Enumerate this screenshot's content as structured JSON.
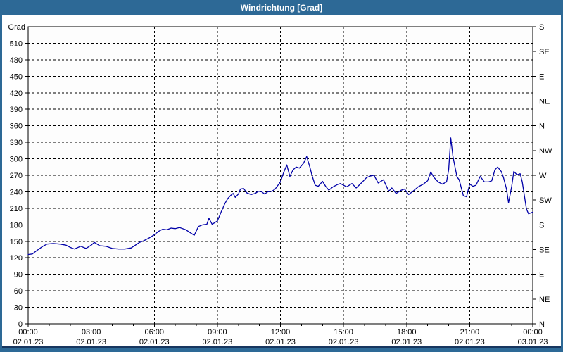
{
  "window": {
    "title": "Windrichtung [Grad]"
  },
  "colors": {
    "frame_blue": "#2d6996",
    "title_text": "#ffffff",
    "dark_edge": "#17365f",
    "plot_background": "#fdfdfd",
    "plot_border": "#000000",
    "grid": "#000000",
    "series_line": "#0000a8",
    "tick_text": "#000000"
  },
  "chart_data": {
    "type": "line",
    "title": "Windrichtung [Grad]",
    "y_unit_label": "Grad",
    "ylim": [
      0,
      540
    ],
    "xlim_hours": [
      0,
      24
    ],
    "grid": "dashed",
    "legend": "none",
    "y_left_ticks": [
      0,
      30,
      60,
      90,
      120,
      150,
      180,
      210,
      240,
      270,
      300,
      330,
      360,
      390,
      420,
      450,
      480,
      510
    ],
    "y_right_compass": [
      {
        "deg": 0,
        "label": "N"
      },
      {
        "deg": 45,
        "label": "NE"
      },
      {
        "deg": 90,
        "label": "E"
      },
      {
        "deg": 135,
        "label": "SE"
      },
      {
        "deg": 180,
        "label": "S"
      },
      {
        "deg": 225,
        "label": "SW"
      },
      {
        "deg": 270,
        "label": "W"
      },
      {
        "deg": 315,
        "label": "NW"
      },
      {
        "deg": 360,
        "label": "N"
      },
      {
        "deg": 405,
        "label": "NE"
      },
      {
        "deg": 450,
        "label": "E"
      },
      {
        "deg": 495,
        "label": "SE"
      },
      {
        "deg": 540,
        "label": "S"
      }
    ],
    "x_major_ticks": [
      {
        "hour": 0,
        "time": "00:00",
        "date": "02.01.23"
      },
      {
        "hour": 3,
        "time": "03:00",
        "date": "02.01.23"
      },
      {
        "hour": 6,
        "time": "06:00",
        "date": "02.01.23"
      },
      {
        "hour": 9,
        "time": "09:00",
        "date": "02.01.23"
      },
      {
        "hour": 12,
        "time": "12:00",
        "date": "02.01.23"
      },
      {
        "hour": 15,
        "time": "15:00",
        "date": "02.01.23"
      },
      {
        "hour": 18,
        "time": "18:00",
        "date": "02.01.23"
      },
      {
        "hour": 21,
        "time": "21:00",
        "date": "02.01.23"
      },
      {
        "hour": 24,
        "time": "00:00",
        "date": "03.01.23"
      }
    ],
    "x_minor_tick_step_hours": 1,
    "series": [
      {
        "name": "Windrichtung",
        "color": "#0000a8",
        "points": [
          [
            0,
            126
          ],
          [
            0.2,
            127
          ],
          [
            0.4,
            133
          ],
          [
            0.7,
            141
          ],
          [
            0.9,
            145
          ],
          [
            1.2,
            146
          ],
          [
            1.5,
            145
          ],
          [
            1.8,
            143
          ],
          [
            2,
            139
          ],
          [
            2.2,
            136
          ],
          [
            2.5,
            141
          ],
          [
            2.75,
            137
          ],
          [
            3,
            143
          ],
          [
            3.15,
            148
          ],
          [
            3.4,
            142
          ],
          [
            3.7,
            141
          ],
          [
            4,
            137
          ],
          [
            4.3,
            136
          ],
          [
            4.6,
            136
          ],
          [
            4.9,
            138
          ],
          [
            5.1,
            143
          ],
          [
            5.3,
            148
          ],
          [
            5.5,
            151
          ],
          [
            5.75,
            156
          ],
          [
            6,
            162
          ],
          [
            6.2,
            168
          ],
          [
            6.4,
            172
          ],
          [
            6.6,
            171
          ],
          [
            6.8,
            174
          ],
          [
            7,
            173
          ],
          [
            7.2,
            175
          ],
          [
            7.5,
            171
          ],
          [
            7.7,
            166
          ],
          [
            7.9,
            161
          ],
          [
            8.1,
            177
          ],
          [
            8.3,
            180
          ],
          [
            8.5,
            181
          ],
          [
            8.6,
            192
          ],
          [
            8.75,
            181
          ],
          [
            9,
            187
          ],
          [
            9.2,
            205
          ],
          [
            9.35,
            218
          ],
          [
            9.5,
            228
          ],
          [
            9.65,
            234
          ],
          [
            9.75,
            237
          ],
          [
            9.85,
            230
          ],
          [
            10,
            236
          ],
          [
            10.1,
            245
          ],
          [
            10.25,
            246
          ],
          [
            10.4,
            238
          ],
          [
            10.6,
            235
          ],
          [
            10.8,
            237
          ],
          [
            10.95,
            241
          ],
          [
            11.1,
            240
          ],
          [
            11.25,
            236
          ],
          [
            11.4,
            240
          ],
          [
            11.6,
            241
          ],
          [
            11.75,
            245
          ],
          [
            12,
            258
          ],
          [
            12.15,
            275
          ],
          [
            12.3,
            289
          ],
          [
            12.45,
            268
          ],
          [
            12.6,
            280
          ],
          [
            12.75,
            285
          ],
          [
            12.9,
            283
          ],
          [
            13.1,
            292
          ],
          [
            13.25,
            304
          ],
          [
            13.4,
            285
          ],
          [
            13.5,
            270
          ],
          [
            13.65,
            252
          ],
          [
            13.8,
            250
          ],
          [
            14,
            259
          ],
          [
            14.15,
            250
          ],
          [
            14.3,
            243
          ],
          [
            14.5,
            249
          ],
          [
            14.7,
            253
          ],
          [
            14.85,
            255
          ],
          [
            15,
            252
          ],
          [
            15.15,
            249
          ],
          [
            15.4,
            255
          ],
          [
            15.6,
            247
          ],
          [
            15.85,
            256
          ],
          [
            16.1,
            266
          ],
          [
            16.3,
            269
          ],
          [
            16.45,
            270
          ],
          [
            16.65,
            256
          ],
          [
            16.9,
            262
          ],
          [
            17.15,
            241
          ],
          [
            17.3,
            247
          ],
          [
            17.5,
            237
          ],
          [
            17.75,
            243
          ],
          [
            17.9,
            245
          ],
          [
            18.1,
            235
          ],
          [
            18.3,
            241
          ],
          [
            18.55,
            249
          ],
          [
            18.8,
            254
          ],
          [
            19,
            260
          ],
          [
            19.15,
            276
          ],
          [
            19.3,
            266
          ],
          [
            19.5,
            258
          ],
          [
            19.7,
            254
          ],
          [
            19.9,
            258
          ],
          [
            20,
            280
          ],
          [
            20.1,
            338
          ],
          [
            20.2,
            305
          ],
          [
            20.3,
            285
          ],
          [
            20.4,
            267
          ],
          [
            20.5,
            262
          ],
          [
            20.7,
            233
          ],
          [
            20.85,
            231
          ],
          [
            21,
            254
          ],
          [
            21.15,
            250
          ],
          [
            21.3,
            252
          ],
          [
            21.5,
            268
          ],
          [
            21.7,
            258
          ],
          [
            21.9,
            258
          ],
          [
            22.05,
            260
          ],
          [
            22.2,
            280
          ],
          [
            22.33,
            285
          ],
          [
            22.5,
            277
          ],
          [
            22.6,
            267
          ],
          [
            22.75,
            245
          ],
          [
            22.85,
            220
          ],
          [
            23,
            250
          ],
          [
            23.1,
            277
          ],
          [
            23.25,
            271
          ],
          [
            23.4,
            273
          ],
          [
            23.5,
            258
          ],
          [
            23.6,
            233
          ],
          [
            23.7,
            209
          ],
          [
            23.8,
            200
          ],
          [
            24,
            203
          ]
        ]
      }
    ]
  }
}
